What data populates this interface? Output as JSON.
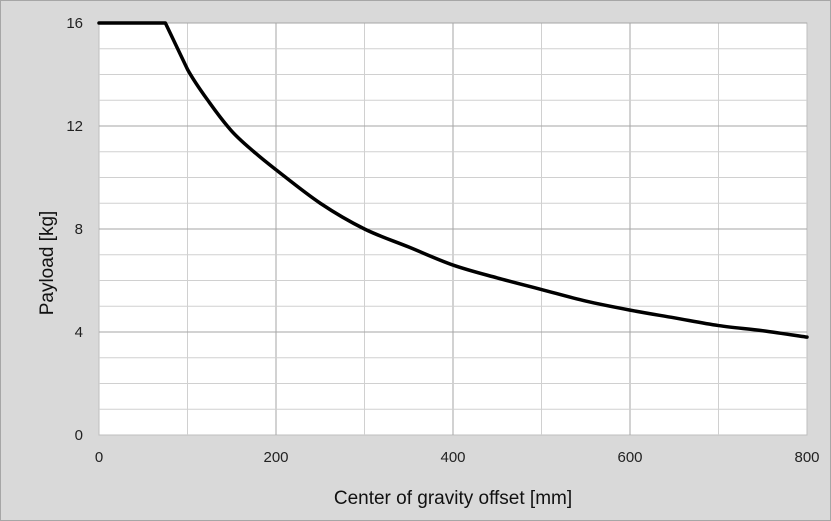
{
  "chart_data": {
    "type": "line",
    "xlabel": "Center of gravity offset [mm]",
    "ylabel": "Payload [kg]",
    "xlim": [
      0,
      800
    ],
    "ylim": [
      0,
      16
    ],
    "x_ticks": [
      "0",
      "200",
      "400",
      "600",
      "800"
    ],
    "y_ticks": [
      "0",
      "4",
      "8",
      "12",
      "16"
    ],
    "x_minor_step": 100,
    "y_minor_step": 1,
    "grid": true,
    "legend": "none",
    "series": [
      {
        "color": "#000000",
        "x": [
          0,
          75,
          100,
          125,
          150,
          175,
          200,
          250,
          300,
          350,
          400,
          450,
          500,
          550,
          600,
          650,
          700,
          750,
          800
        ],
        "y": [
          16,
          16,
          14.2,
          12.9,
          11.8,
          11.0,
          10.3,
          9.0,
          8.0,
          7.3,
          6.6,
          6.1,
          5.65,
          5.2,
          4.85,
          4.55,
          4.25,
          4.05,
          3.8
        ]
      }
    ]
  }
}
